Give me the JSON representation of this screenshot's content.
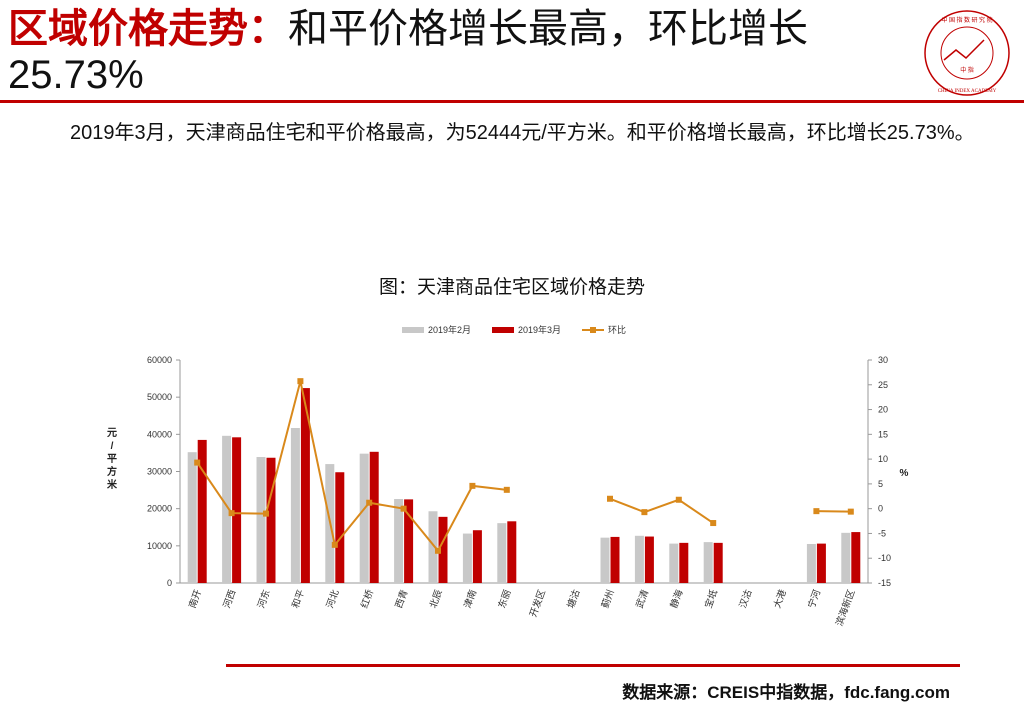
{
  "header": {
    "title_red": "区域价格走势：",
    "title_black": "和平价格增长最高，环比增长",
    "title_line2": "25.73%"
  },
  "logo": {
    "text_top": "中 国 指 数 研 究 院",
    "text_bottom": "CHINA INDEX ACADEMY",
    "center": "中 指",
    "color": "#c00000"
  },
  "paragraph": "2019年3月，天津商品住宅和平价格最高，为52444元/平方米。和平价格增长最高，环比增长25.73%。",
  "chart_caption": "图：天津商品住宅区域价格走势",
  "footer": "数据来源：CREIS中指数据，fdc.fang.com",
  "chart_data": {
    "type": "bar",
    "categories": [
      "南开",
      "河西",
      "河东",
      "和平",
      "河北",
      "红桥",
      "西青",
      "北辰",
      "津南",
      "东丽",
      "开发区",
      "塘沽",
      "蓟州",
      "武清",
      "静海",
      "宝坻",
      "汉沽",
      "大港",
      "宁河",
      "滨海新区"
    ],
    "series": [
      {
        "name": "2019年2月",
        "type": "bar",
        "axis": "left",
        "color": "#c8c8c8",
        "values": [
          35200,
          39600,
          33900,
          41700,
          32000,
          34800,
          22600,
          19300,
          13300,
          16100,
          null,
          null,
          12200,
          12700,
          10600,
          11000,
          null,
          null,
          10500,
          13500
        ]
      },
      {
        "name": "2019年3月",
        "type": "bar",
        "axis": "left",
        "color": "#c00000",
        "values": [
          38500,
          39200,
          33700,
          52444,
          29800,
          35300,
          22500,
          17800,
          14200,
          16600,
          null,
          null,
          12400,
          12500,
          10800,
          10800,
          null,
          null,
          10600,
          13700
        ]
      },
      {
        "name": "环比",
        "type": "line",
        "axis": "right",
        "color": "#d9891b",
        "values": [
          9.3,
          -0.9,
          -1.0,
          25.73,
          -7.3,
          1.2,
          0.0,
          -8.5,
          4.6,
          3.8,
          null,
          null,
          2.0,
          -0.7,
          1.8,
          -2.9,
          null,
          null,
          -0.5,
          -0.6
        ]
      }
    ],
    "ylabel": "元/平方米",
    "y2label": "%",
    "ylim": [
      0,
      60000
    ],
    "yticks": [
      0,
      10000,
      20000,
      30000,
      40000,
      50000,
      60000
    ],
    "y2lim": [
      -15,
      30
    ],
    "y2ticks": [
      -15,
      -10,
      -5,
      0,
      5,
      10,
      15,
      20,
      25,
      30
    ],
    "legend_position": "top-center",
    "grid": false
  }
}
